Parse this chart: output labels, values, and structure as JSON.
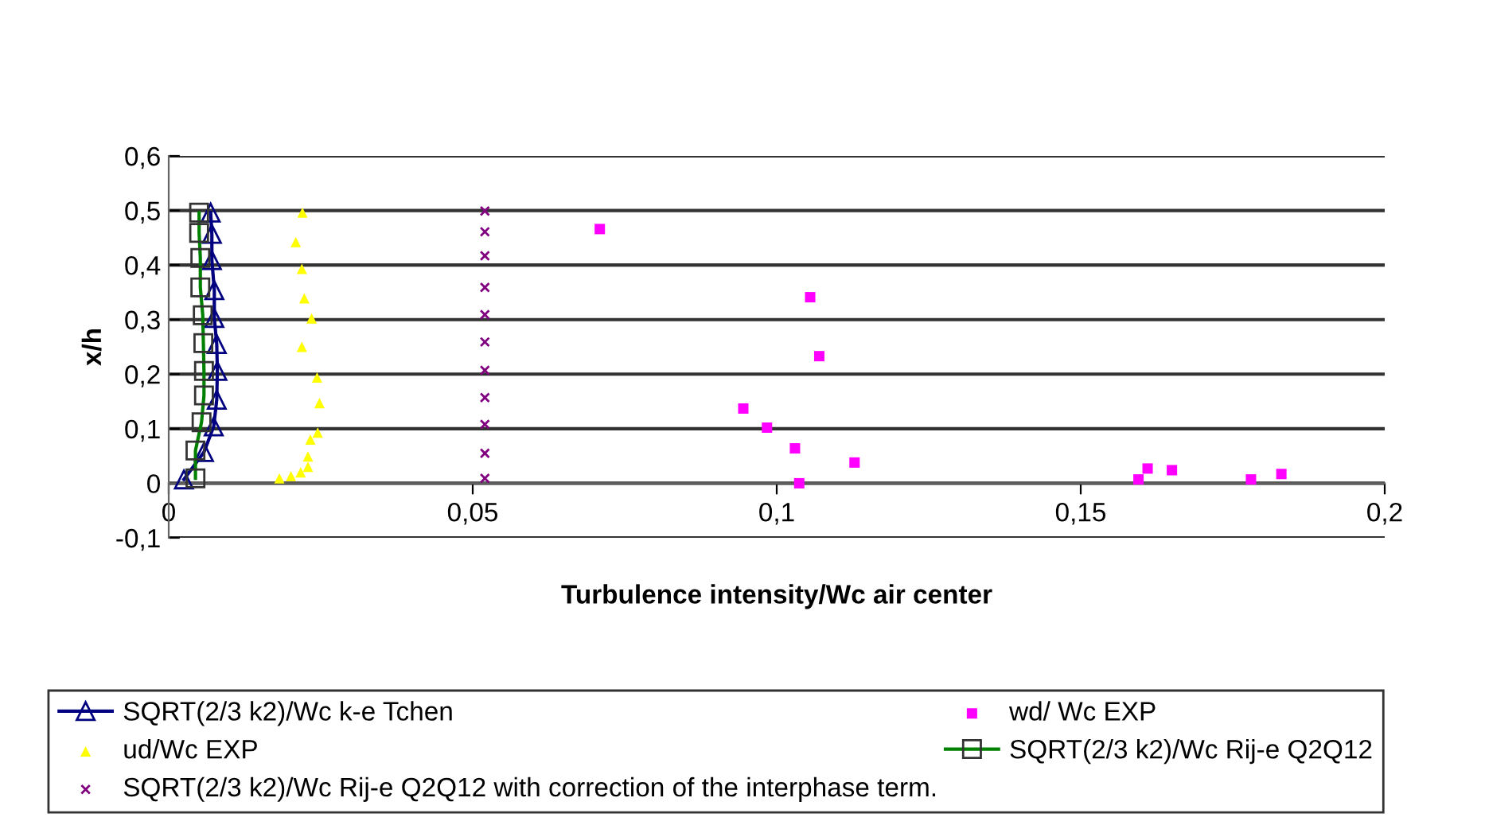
{
  "chart_data": {
    "type": "scatter",
    "xlabel": "Turbulence intensity/Wc air center",
    "ylabel": "x/h",
    "xlim": [
      0,
      0.2
    ],
    "xticks": [
      {
        "value": 0,
        "label": "0"
      },
      {
        "value": 0.05,
        "label": "0,05"
      },
      {
        "value": 0.1,
        "label": "0,1"
      },
      {
        "value": 0.15,
        "label": "0,15"
      },
      {
        "value": 0.2,
        "label": "0,2"
      }
    ],
    "ylim": [
      -0.1,
      0.6
    ],
    "yticks": [
      {
        "value": -0.1,
        "label": "-0,1"
      },
      {
        "value": 0,
        "label": "0"
      },
      {
        "value": 0.1,
        "label": "0,1"
      },
      {
        "value": 0.2,
        "label": "0,2"
      },
      {
        "value": 0.3,
        "label": "0,3"
      },
      {
        "value": 0.4,
        "label": "0,4"
      },
      {
        "value": 0.5,
        "label": "0,5"
      },
      {
        "value": 0.6,
        "label": "0,6"
      }
    ],
    "grid": "y",
    "legend": "bottom",
    "series": [
      {
        "name": "SQRT(2/3 k2)/Wc k-e Tchen",
        "type": "line",
        "marker": "triangle",
        "color": "#000080",
        "x": [
          0.0069,
          0.0071,
          0.0071,
          0.0075,
          0.0075,
          0.0079,
          0.008,
          0.0079,
          0.0074,
          0.0058,
          0.0025
        ],
        "values": [
          0.496,
          0.457,
          0.409,
          0.354,
          0.303,
          0.255,
          0.206,
          0.153,
          0.104,
          0.057,
          0.007
        ]
      },
      {
        "name": "ud/Wc EXP",
        "marker": "triangle",
        "color": "#ffff00",
        "x": [
          0.022,
          0.0209,
          0.0219,
          0.0223,
          0.0235,
          0.0219,
          0.0244,
          0.0248,
          0.0245,
          0.0233,
          0.0229,
          0.0229,
          0.0217,
          0.0201,
          0.0182
        ],
        "values": [
          0.496,
          0.442,
          0.393,
          0.339,
          0.302,
          0.25,
          0.194,
          0.147,
          0.093,
          0.08,
          0.049,
          0.03,
          0.02,
          0.013,
          0.009
        ]
      },
      {
        "name": "SQRT(2/3 k2)/Wc Rij-e Q2Q12 with correction of the interphase term.",
        "marker": "cross",
        "color": "#800080",
        "x": [
          0.052,
          0.052,
          0.052,
          0.052,
          0.052,
          0.052,
          0.052,
          0.052,
          0.052,
          0.052,
          0.052
        ],
        "values": [
          0.499,
          0.461,
          0.417,
          0.359,
          0.309,
          0.259,
          0.207,
          0.157,
          0.108,
          0.055,
          0.009
        ]
      },
      {
        "name": "wd/ Wc EXP",
        "marker": "square",
        "color": "#ff00ff",
        "x": [
          0.0709,
          0.1055,
          0.107,
          0.0945,
          0.0984,
          0.103,
          0.1128,
          0.1037,
          0.1595,
          0.161,
          0.165,
          0.178,
          0.183
        ],
        "values": [
          0.466,
          0.341,
          0.233,
          0.137,
          0.102,
          0.064,
          0.038,
          0.0,
          0.007,
          0.027,
          0.024,
          0.007,
          0.017
        ]
      },
      {
        "name": "SQRT(2/3 k2)/Wc Rij-e Q2Q12",
        "type": "line",
        "marker": "square",
        "color": "#008000",
        "x": [
          0.005,
          0.005,
          0.0052,
          0.0052,
          0.0056,
          0.0057,
          0.0058,
          0.0058,
          0.0054,
          0.0044,
          0.0044
        ],
        "values": [
          0.496,
          0.459,
          0.413,
          0.359,
          0.308,
          0.257,
          0.206,
          0.161,
          0.112,
          0.06,
          0.009
        ]
      }
    ]
  }
}
